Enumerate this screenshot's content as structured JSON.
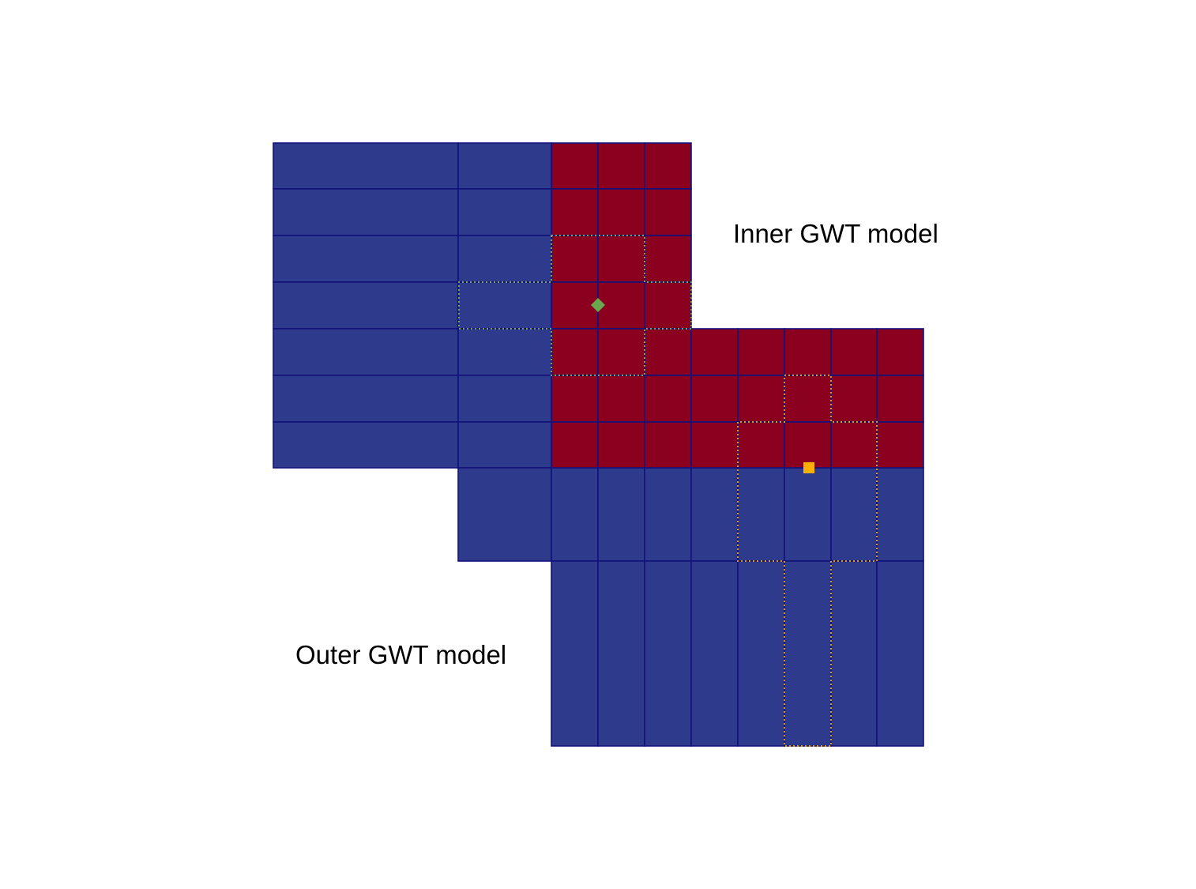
{
  "labels": {
    "inner_model": "Inner GWT model",
    "outer_model": "Outer GWT model"
  },
  "colors": {
    "outer_cells": "#2e3a8c",
    "inner_cells": "#8b001e",
    "cell_lines": "#12127a",
    "stencil_inner": "#7aa05a",
    "stencil_outer": "#d99a12",
    "marker_inner": "#6aa84f",
    "marker_outer": "#ffb000"
  },
  "markers": [
    {
      "name": "inner-cell-marker",
      "shape": "diamond",
      "color_key": "marker_inner"
    },
    {
      "name": "interface-marker",
      "shape": "square",
      "color_key": "marker_outer"
    }
  ]
}
